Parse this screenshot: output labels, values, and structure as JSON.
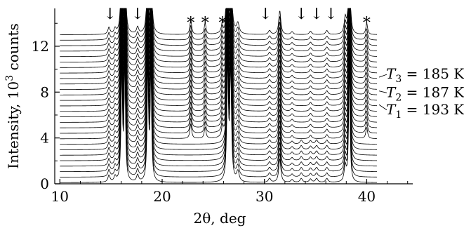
{
  "chart_data": {
    "type": "line",
    "title": "",
    "xlabel": "2θ, deg",
    "ylabel_main": "Intensity, 10",
    "ylabel_sup": "3",
    "ylabel_tail": " counts",
    "xlim": [
      9.5,
      44.5
    ],
    "ylim": [
      0,
      15.3
    ],
    "xticks": [
      10,
      20,
      30,
      40
    ],
    "yticks": [
      0,
      4,
      8,
      12
    ],
    "xtick_labels": [
      "10",
      "20",
      "30",
      "40"
    ],
    "ytick_labels": [
      "0",
      "4",
      "8",
      "12"
    ],
    "grid": false,
    "legend": "none",
    "pattern_count": 28,
    "x_start": 10.0,
    "x_end": 41.0,
    "baseline_first": 0.1,
    "baseline_last": 13.0,
    "peaks_all": [
      {
        "x": 14.8,
        "h": 0.6,
        "w": 0.12
      },
      {
        "x": 15.4,
        "h": 0.45,
        "w": 0.12
      },
      {
        "x": 16.05,
        "h": 10.0,
        "w": 0.08
      },
      {
        "x": 16.35,
        "h": 10.0,
        "w": 0.08
      },
      {
        "x": 17.6,
        "h": 0.6,
        "w": 0.12
      },
      {
        "x": 18.6,
        "h": 10.0,
        "w": 0.08
      },
      {
        "x": 18.9,
        "h": 10.0,
        "w": 0.08
      },
      {
        "x": 26.4,
        "h": 10.0,
        "w": 0.09
      },
      {
        "x": 26.7,
        "h": 10.0,
        "w": 0.09
      },
      {
        "x": 27.4,
        "h": 0.9,
        "w": 0.15
      },
      {
        "x": 30.5,
        "h": 0.35,
        "w": 0.14
      },
      {
        "x": 31.5,
        "h": 2.1,
        "w": 0.12
      },
      {
        "x": 32.7,
        "h": 0.25,
        "w": 0.14
      },
      {
        "x": 34.5,
        "h": 0.3,
        "w": 0.14
      },
      {
        "x": 36.1,
        "h": 0.35,
        "w": 0.14
      },
      {
        "x": 37.9,
        "h": 1.4,
        "w": 0.12
      },
      {
        "x": 38.3,
        "h": 10.0,
        "w": 0.08
      }
    ],
    "peaks_low_temp": [
      {
        "x": 22.8,
        "h": 1.3,
        "w": 0.1
      },
      {
        "x": 24.2,
        "h": 1.0,
        "w": 0.1
      },
      {
        "x": 25.9,
        "h": 0.9,
        "w": 0.1
      },
      {
        "x": 40.0,
        "h": 1.0,
        "w": 0.1
      }
    ],
    "peaks_high_temp": [
      {
        "x": 33.6,
        "h": 0.35,
        "w": 0.14
      },
      {
        "x": 35.1,
        "h": 0.35,
        "w": 0.14
      }
    ],
    "low_temp_pattern_index": 8,
    "arrow_markers_x": [
      14.9,
      17.6,
      30.1,
      33.6,
      35.1,
      36.5
    ],
    "star_markers_x": [
      22.8,
      24.2,
      25.9,
      40.0
    ],
    "arrow_glyph": "↓",
    "star_glyph": "*",
    "temperature_labels": [
      {
        "sym": "T",
        "sub": "3",
        "text": " = 185 K",
        "y_data": 9.6
      },
      {
        "sym": "T",
        "sub": "2",
        "text": " = 187 K",
        "y_data": 8.0
      },
      {
        "sym": "T",
        "sub": "1",
        "text": " = 193 K",
        "y_data": 6.5
      }
    ],
    "temperature_pointer_y": [
      9.3,
      8.1,
      6.9
    ],
    "colors": {
      "pattern": "#000000",
      "axis": "#000000"
    }
  }
}
